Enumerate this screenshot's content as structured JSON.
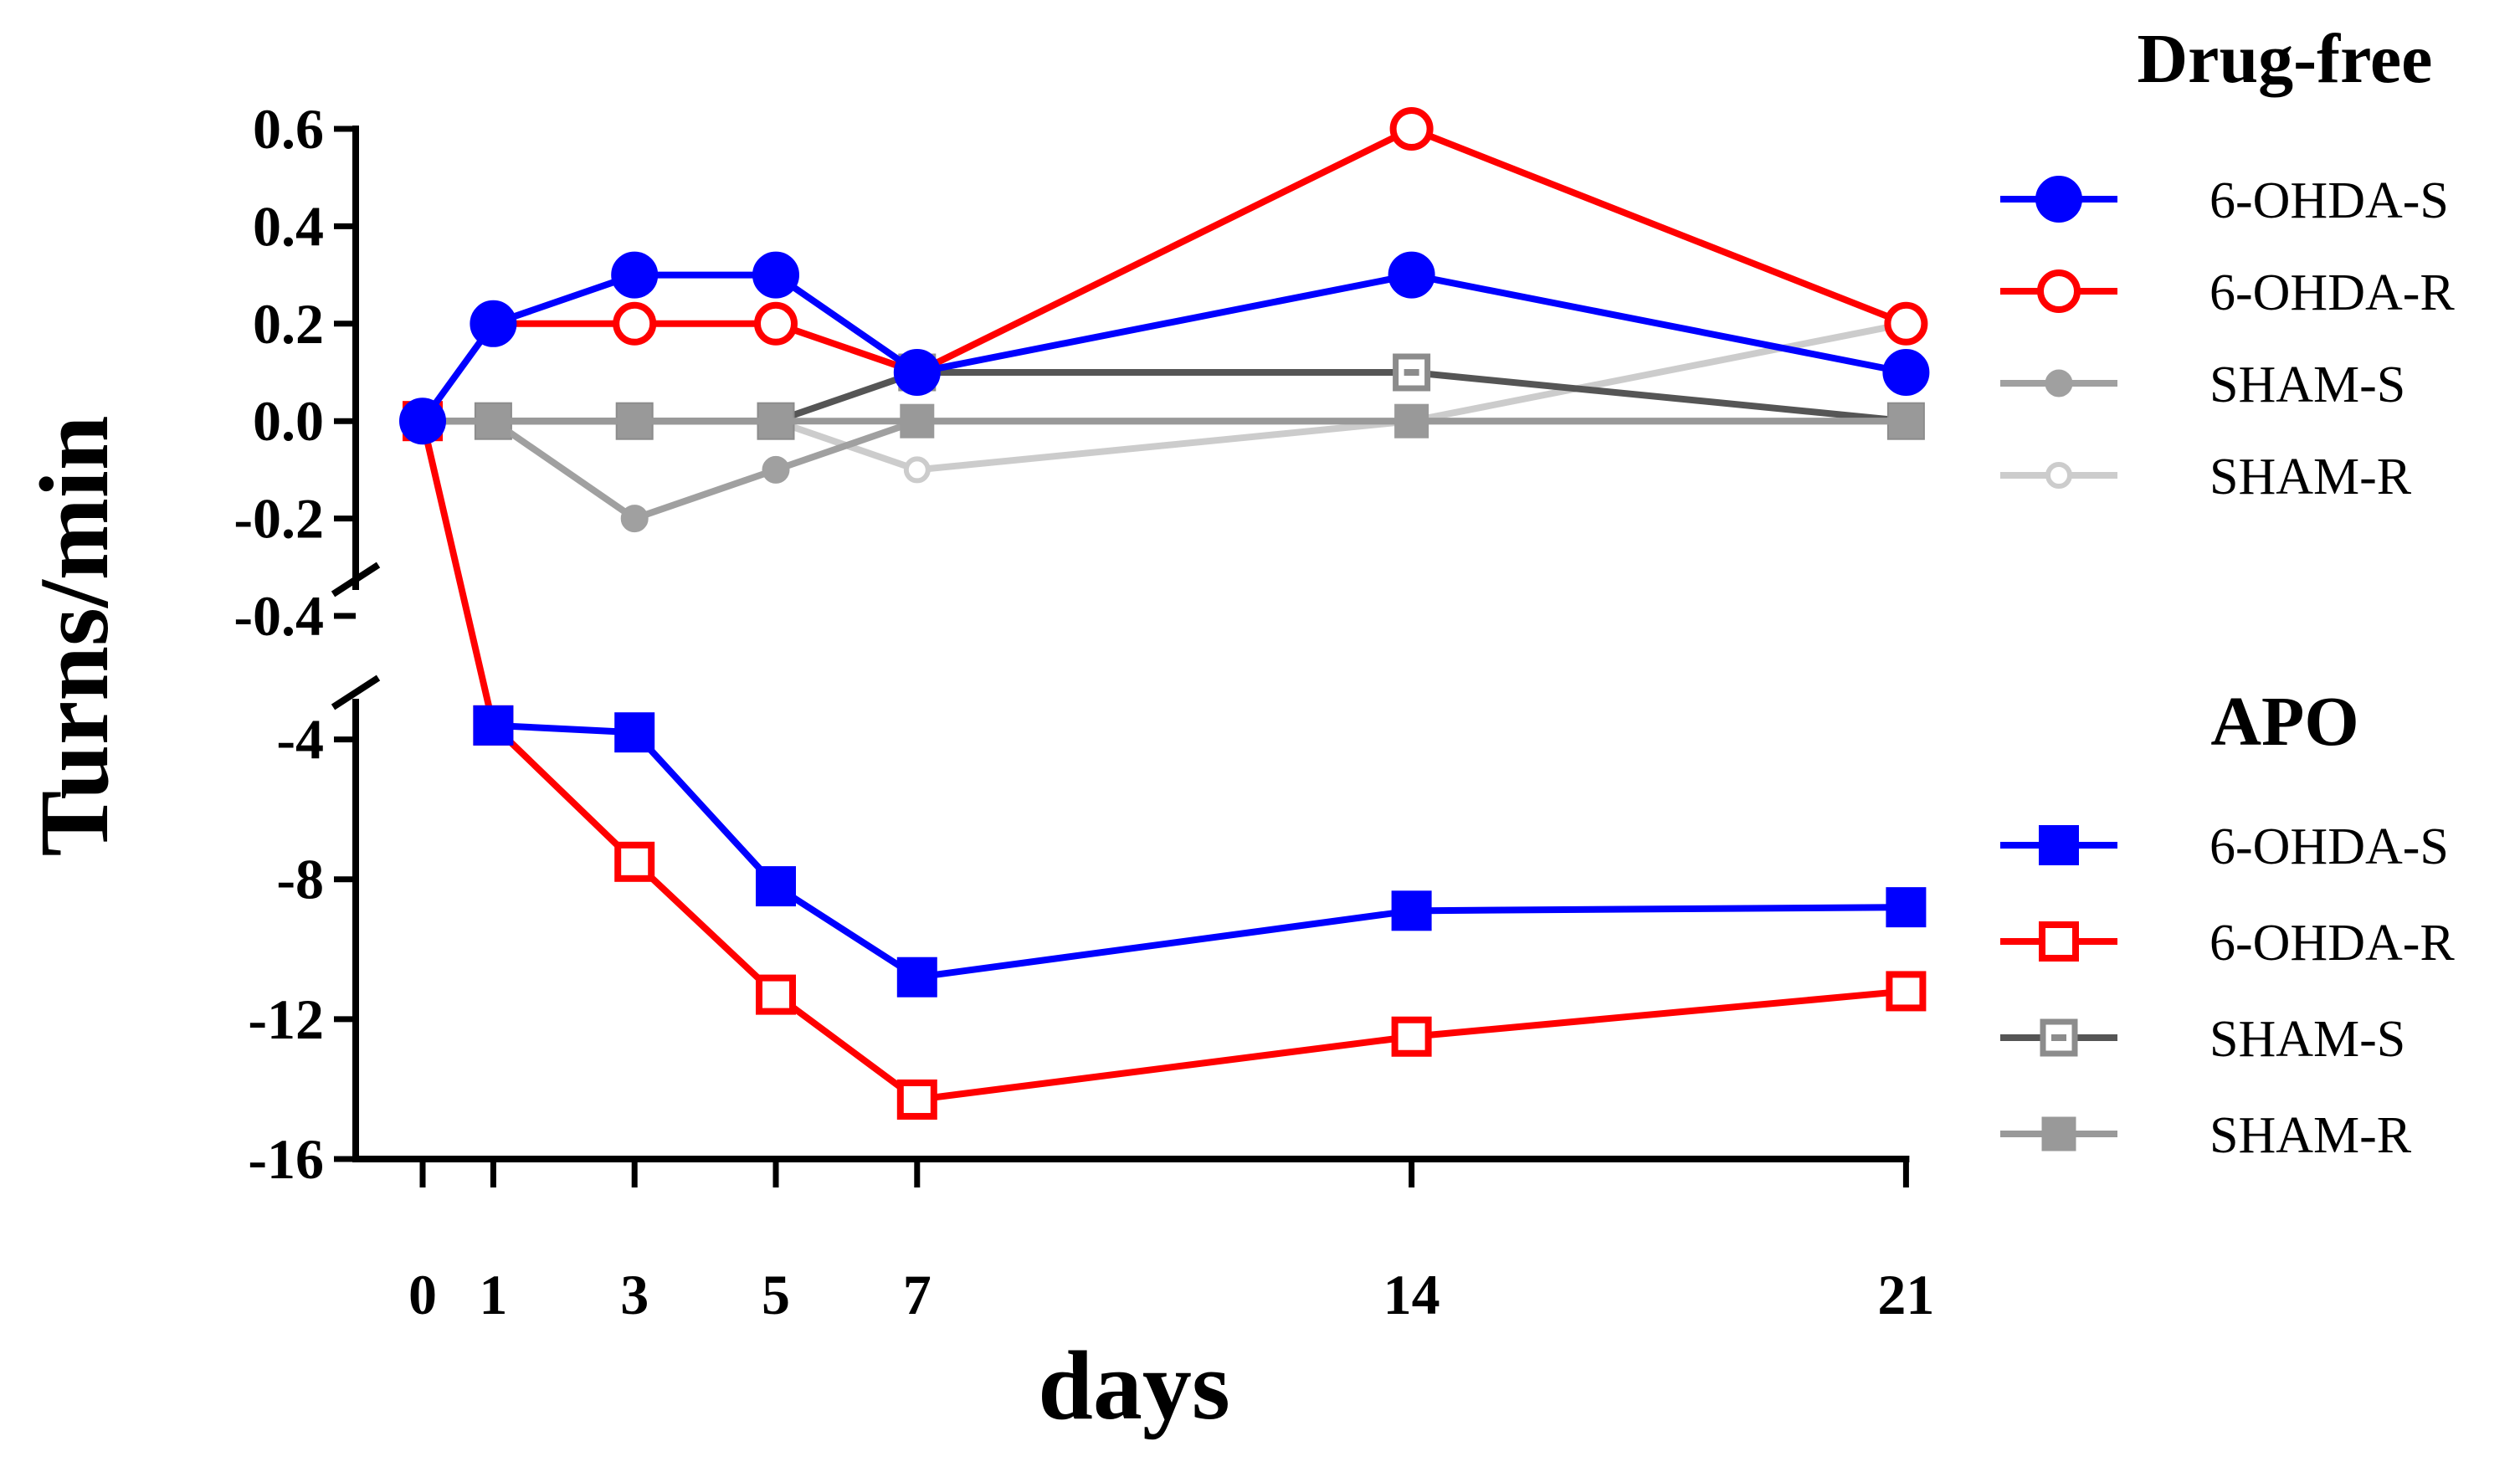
{
  "chart_data": {
    "type": "line",
    "xlabel": "days",
    "ylabel": "Turns/min",
    "x_ticks": [
      0,
      1,
      3,
      5,
      7,
      14,
      21
    ],
    "y_ticks_top": [
      "0.6",
      "0.4",
      "0.2",
      "0.0",
      "-0.2",
      "-0.4"
    ],
    "y_ticks_bottom": [
      "-4",
      "-8",
      "-12",
      "-16"
    ],
    "ylim_top": [
      -0.4,
      0.6
    ],
    "ylim_bottom": [
      -16,
      -2
    ],
    "y_axis_break": true,
    "legend_groups": [
      {
        "title": "Drug-free",
        "series": [
          {
            "name": "6-OHDA-S",
            "color": "#0000ff",
            "marker": "circle-filled",
            "x": [
              0,
              1,
              3,
              5,
              7,
              14,
              21
            ],
            "y": [
              0,
              0.2,
              0.3,
              0.3,
              0.1,
              0.3,
              0.1
            ]
          },
          {
            "name": "6-OHDA-R",
            "color": "#ff0000",
            "marker": "circle-open",
            "x": [
              1,
              3,
              5,
              7,
              14,
              21
            ],
            "y": [
              0.2,
              0.2,
              0.2,
              0.1,
              0.6,
              0.2
            ]
          },
          {
            "name": "SHAM-S",
            "color": "#a0a0a0",
            "marker": "dot-filled",
            "x": [
              0,
              1,
              3,
              5,
              7,
              14,
              21
            ],
            "y": [
              0,
              0,
              -0.2,
              -0.1,
              0,
              0,
              0
            ]
          },
          {
            "name": "SHAM-R",
            "color": "#cccccc",
            "marker": "dot-open",
            "x": [
              0,
              1,
              3,
              5,
              7,
              14,
              21
            ],
            "y": [
              0,
              0,
              0,
              0,
              -0.1,
              0,
              0.2
            ]
          }
        ]
      },
      {
        "title": "APO",
        "series": [
          {
            "name": "6-OHDA-S",
            "color": "#0000ff",
            "marker": "square-filled",
            "x": [
              1,
              3,
              5,
              7,
              14,
              21
            ],
            "y": [
              -3.6,
              -3.8,
              -8.2,
              -10.8,
              -8.9,
              -8.8
            ]
          },
          {
            "name": "6-OHDA-R",
            "color": "#ff0000",
            "marker": "square-open",
            "x": [
              0,
              1,
              3,
              5,
              7,
              14,
              21
            ],
            "y": [
              0,
              -3.6,
              -7.5,
              -11.3,
              -14.3,
              -12.5,
              -11.2
            ]
          },
          {
            "name": "SHAM-S",
            "color": "#555555",
            "marker": "square-open-gray",
            "x": [
              0,
              1,
              3,
              5,
              7,
              14,
              21
            ],
            "y": [
              0,
              0,
              0,
              0,
              0.1,
              0.1,
              0
            ]
          },
          {
            "name": "SHAM-R",
            "color": "#999999",
            "marker": "square-filled-gray",
            "x": [
              0,
              1,
              3,
              5,
              7,
              14,
              21
            ],
            "y": [
              0,
              0,
              0,
              0,
              0,
              0,
              0
            ]
          }
        ]
      }
    ]
  }
}
